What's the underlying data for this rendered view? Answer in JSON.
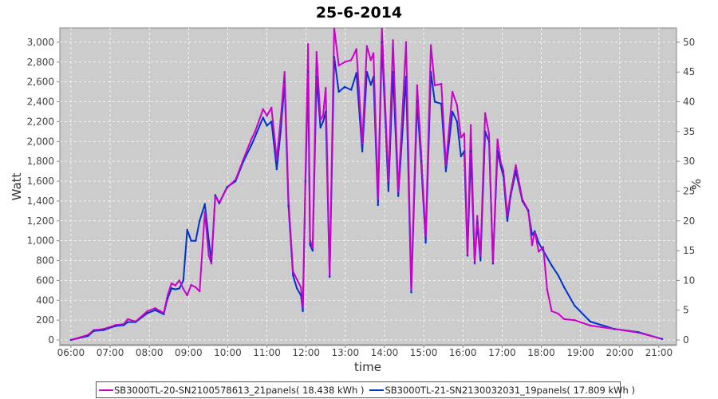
{
  "chart_data": {
    "type": "line",
    "title": "25-6-2014",
    "xlabel": "time",
    "ylabel": "Watt",
    "y2label": "%",
    "xlim": [
      "05:43",
      "21:27"
    ],
    "ylim": [
      -48,
      3144
    ],
    "y2lim": [
      -0.8,
      52.4
    ],
    "xticks": [
      "06:00",
      "07:00",
      "08:00",
      "09:00",
      "10:00",
      "11:00",
      "12:00",
      "13:00",
      "14:00",
      "15:00",
      "16:00",
      "17:00",
      "18:00",
      "19:00",
      "20:00",
      "21:00"
    ],
    "yticks": [
      0,
      200,
      400,
      600,
      800,
      1000,
      1200,
      1400,
      1600,
      1800,
      2000,
      2200,
      2400,
      2600,
      2800,
      3000
    ],
    "ytick_labels": [
      "0",
      "200",
      "400",
      "600",
      "800",
      "1,000",
      "1,200",
      "1,400",
      "1,600",
      "1,800",
      "2,000",
      "2,200",
      "2,400",
      "2,600",
      "2,800",
      "3,000"
    ],
    "y2ticks": [
      0,
      5,
      10,
      15,
      20,
      25,
      30,
      35,
      40,
      45,
      50
    ],
    "grid": true,
    "background": "#cccccc",
    "legend_position": "bottom",
    "x": [
      "06:00",
      "06:26",
      "06:35",
      "06:50",
      "07:08",
      "07:21",
      "07:27",
      "07:39",
      "07:57",
      "08:09",
      "08:22",
      "08:28",
      "08:34",
      "08:40",
      "08:46",
      "08:52",
      "08:58",
      "09:04",
      "09:11",
      "09:17",
      "09:25",
      "09:31",
      "09:35",
      "09:41",
      "09:47",
      "09:59",
      "10:12",
      "10:24",
      "10:36",
      "10:42",
      "10:54",
      "11:00",
      "11:07",
      "11:15",
      "11:21",
      "11:27",
      "11:33",
      "11:40",
      "11:46",
      "11:52",
      "11:55",
      "11:59",
      "12:03",
      "12:06",
      "12:10",
      "12:16",
      "12:22",
      "12:26",
      "12:30",
      "12:36",
      "12:43",
      "12:50",
      "12:59",
      "13:09",
      "13:17",
      "13:26",
      "13:33",
      "13:39",
      "13:43",
      "13:50",
      "13:56",
      "14:06",
      "14:13",
      "14:21",
      "14:33",
      "14:41",
      "14:50",
      "14:56",
      "15:03",
      "15:11",
      "15:17",
      "15:27",
      "15:34",
      "15:44",
      "15:51",
      "15:57",
      "16:02",
      "16:07",
      "16:12",
      "16:18",
      "16:22",
      "16:27",
      "16:34",
      "16:40",
      "16:46",
      "16:53",
      "16:58",
      "17:02",
      "17:08",
      "17:13",
      "17:21",
      "17:31",
      "17:40",
      "17:46",
      "17:50",
      "17:56",
      "18:03",
      "18:09",
      "18:16",
      "18:26",
      "18:35",
      "18:51",
      "19:15",
      "19:52",
      "20:28",
      "21:05"
    ],
    "series": [
      {
        "name": "SB3000TL-20-SN2100578613_21panels( 18.438 kWh )",
        "color": "#cc00cc",
        "values": [
          0,
          50,
          100,
          110,
          150,
          160,
          210,
          185,
          290,
          320,
          270,
          450,
          570,
          550,
          600,
          515,
          450,
          555,
          530,
          490,
          1290,
          850,
          770,
          1455,
          1375,
          1535,
          1615,
          1820,
          2020,
          2100,
          2325,
          2260,
          2340,
          1820,
          2220,
          2700,
          1415,
          690,
          610,
          530,
          330,
          1655,
          2980,
          1010,
          930,
          2900,
          2220,
          2260,
          2540,
          635,
          3145,
          2765,
          2800,
          2820,
          2930,
          1980,
          2960,
          2820,
          2890,
          1420,
          3145,
          1600,
          3020,
          1495,
          3000,
          505,
          2565,
          1900,
          1040,
          2970,
          2565,
          2580,
          1760,
          2500,
          2365,
          2040,
          2080,
          850,
          2165,
          770,
          1250,
          850,
          2285,
          2075,
          770,
          2020,
          1790,
          1710,
          1255,
          1480,
          1760,
          1415,
          1310,
          955,
          1095,
          890,
          935,
          505,
          290,
          265,
          210,
          200,
          145,
          110,
          75,
          10
        ]
      },
      {
        "name": "SB3000TL-21-SN2130032031_19panels( 17.809 kWh )",
        "color": "#0033cc",
        "values": [
          0,
          40,
          90,
          100,
          140,
          150,
          180,
          180,
          270,
          300,
          260,
          420,
          520,
          510,
          520,
          600,
          1110,
          1000,
          1000,
          1200,
          1370,
          1000,
          800,
          1460,
          1380,
          1540,
          1600,
          1800,
          1960,
          2050,
          2240,
          2160,
          2200,
          1720,
          2100,
          2600,
          1350,
          650,
          520,
          450,
          290,
          1600,
          2700,
          960,
          900,
          2650,
          2140,
          2200,
          2300,
          640,
          2850,
          2500,
          2550,
          2520,
          2690,
          1900,
          2700,
          2570,
          2650,
          1360,
          3000,
          1500,
          2700,
          1450,
          2650,
          480,
          2400,
          1800,
          980,
          2700,
          2400,
          2380,
          1700,
          2300,
          2200,
          1850,
          1900,
          850,
          1900,
          780,
          1180,
          800,
          2100,
          2000,
          770,
          1900,
          1750,
          1650,
          1200,
          1450,
          1700,
          1400,
          1300,
          1060,
          1095,
          980,
          900,
          830,
          750,
          650,
          530,
          345,
          185,
          110,
          80,
          10
        ]
      }
    ]
  }
}
